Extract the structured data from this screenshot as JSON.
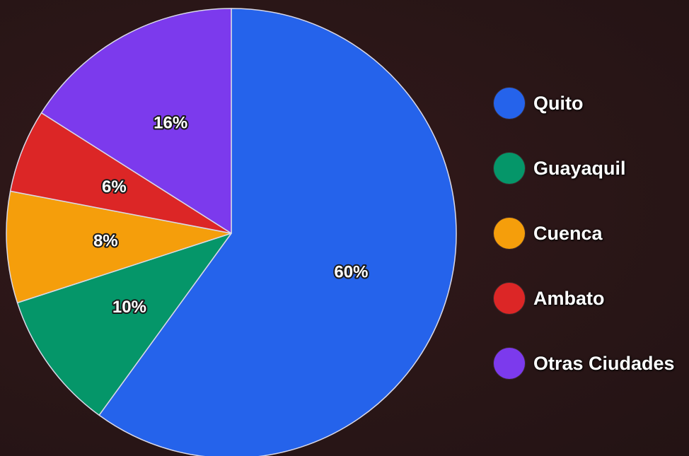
{
  "chart_data": {
    "type": "pie",
    "title": "",
    "legend_position": "right",
    "slices": [
      {
        "name": "Quito",
        "value": 60,
        "label": "60%",
        "color": "#2563eb"
      },
      {
        "name": "Guayaquil",
        "value": 10,
        "label": "10%",
        "color": "#059669"
      },
      {
        "name": "Cuenca",
        "value": 8,
        "label": "8%",
        "color": "#f59e0b"
      },
      {
        "name": "Ambato",
        "value": 6,
        "label": "6%",
        "color": "#dc2626"
      },
      {
        "name": "Otras Ciudades",
        "value": 16,
        "label": "16%",
        "color": "#7c3aed"
      }
    ]
  },
  "legend": {
    "items": [
      {
        "label": "Quito",
        "color": "#2563eb"
      },
      {
        "label": "Guayaquil",
        "color": "#059669"
      },
      {
        "label": "Cuenca",
        "color": "#f59e0b"
      },
      {
        "label": "Ambato",
        "color": "#dc2626"
      },
      {
        "label": "Otras Ciudades",
        "color": "#7c3aed"
      }
    ]
  },
  "colors": {
    "background": "#2b1718",
    "slice_border": "#d9d9e8"
  }
}
